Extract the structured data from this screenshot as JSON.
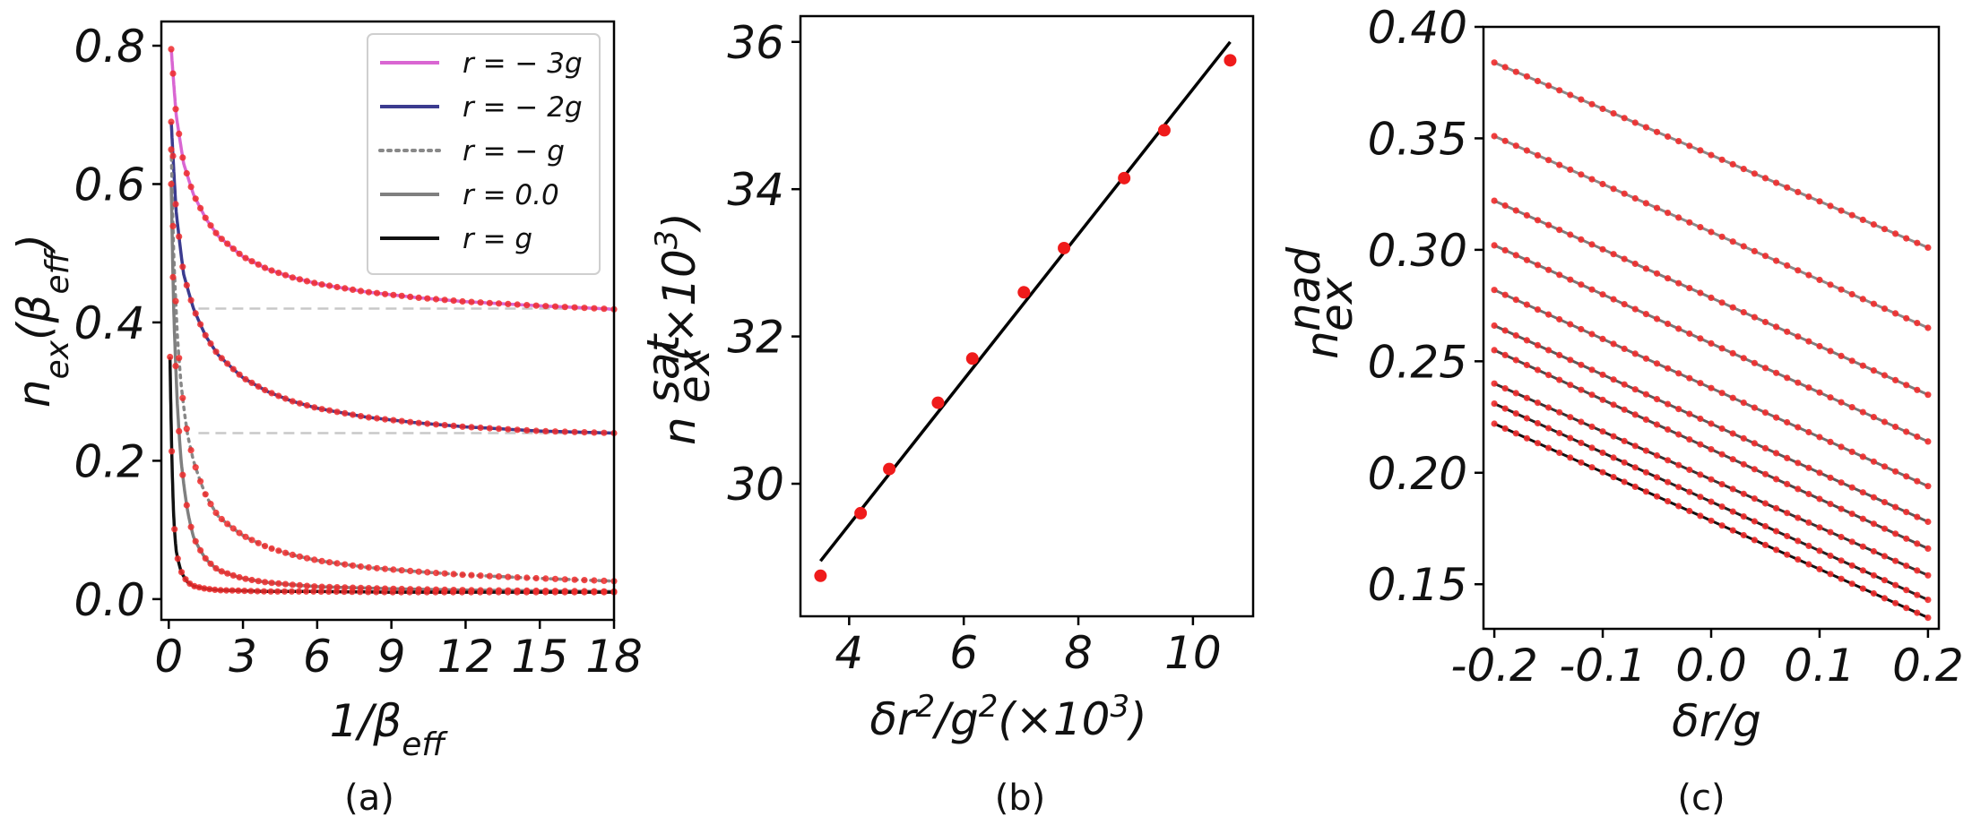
{
  "chart_data": [
    {
      "panel": "a",
      "caption": "(a)",
      "type": "line",
      "xlabel": "1/β",
      "xlabel_sub": "eff",
      "ylabel": "n",
      "ylabel_sub": "ex",
      "ylabel_paren": "(β",
      "ylabel_paren_sub": "eff",
      "ylabel_close": ")",
      "xlim": [
        -0.3,
        18
      ],
      "ylim": [
        -0.03,
        0.835
      ],
      "xticks": [
        0,
        3,
        6,
        9,
        12,
        15,
        18
      ],
      "xtick_labels": [
        "0",
        "3",
        "6",
        "9",
        "12",
        "15",
        "18"
      ],
      "yticks": [
        0.0,
        0.2,
        0.4,
        0.6,
        0.8
      ],
      "ytick_labels": [
        "0.0",
        "0.2",
        "0.4",
        "0.6",
        "0.8"
      ],
      "legend_position": "top-right",
      "legend": [
        "r = − 3g",
        "r = − 2g",
        "r = − g",
        "r = 0.0",
        "r = g"
      ],
      "marker_color": "#ef2b2b",
      "series": [
        {
          "name": "r = − 3g",
          "color": "#d966d2",
          "style": "solid",
          "x": [
            0.1,
            0.3,
            0.6,
            1.0,
            1.5,
            2,
            3,
            4,
            5,
            6,
            8,
            10,
            12,
            15,
            18
          ],
          "y": [
            0.795,
            0.7,
            0.63,
            0.585,
            0.55,
            0.525,
            0.495,
            0.477,
            0.465,
            0.456,
            0.444,
            0.436,
            0.43,
            0.424,
            0.419
          ]
        },
        {
          "name": "r = − 2g",
          "color": "#3b3b8f",
          "style": "solid",
          "x": [
            0.1,
            0.3,
            0.6,
            1.0,
            1.5,
            2,
            3,
            4,
            5,
            6,
            8,
            10,
            12,
            15,
            18
          ],
          "y": [
            0.69,
            0.56,
            0.47,
            0.42,
            0.38,
            0.353,
            0.32,
            0.3,
            0.286,
            0.276,
            0.263,
            0.255,
            0.249,
            0.243,
            0.24
          ]
        },
        {
          "name": "r = − g",
          "color": "#888888",
          "style": "dotted",
          "x": [
            0.1,
            0.2,
            0.35,
            0.5,
            0.75,
            1.0,
            1.5,
            2,
            3,
            4,
            5,
            6,
            8,
            10,
            12,
            15,
            18
          ],
          "y": [
            0.65,
            0.5,
            0.38,
            0.31,
            0.24,
            0.2,
            0.15,
            0.12,
            0.092,
            0.075,
            0.064,
            0.056,
            0.046,
            0.04,
            0.035,
            0.03,
            0.026
          ]
        },
        {
          "name": "r = 0.0",
          "color": "#7f7f7f",
          "style": "solid",
          "x": [
            0.1,
            0.2,
            0.35,
            0.5,
            0.75,
            1.0,
            1.5,
            2,
            3,
            4,
            6,
            9,
            12,
            15,
            18
          ],
          "y": [
            0.6,
            0.42,
            0.28,
            0.2,
            0.13,
            0.09,
            0.058,
            0.042,
            0.03,
            0.024,
            0.018,
            0.015,
            0.013,
            0.012,
            0.011
          ]
        },
        {
          "name": "r = g",
          "color": "#111111",
          "style": "solid",
          "x": [
            0.05,
            0.1,
            0.2,
            0.3,
            0.5,
            0.75,
            1.0,
            1.5,
            2,
            3,
            4,
            6,
            9,
            12,
            15,
            18
          ],
          "y": [
            0.35,
            0.25,
            0.12,
            0.07,
            0.04,
            0.025,
            0.019,
            0.015,
            0.013,
            0.012,
            0.011,
            0.011,
            0.01,
            0.01,
            0.01,
            0.01
          ]
        }
      ],
      "reference_lines": [
        0.42,
        0.24
      ]
    },
    {
      "panel": "b",
      "caption": "(b)",
      "type": "scatter",
      "xlabel": "δr",
      "xlabel_sup": "2",
      "xlabel_mid": "/g",
      "xlabel_sup2": "2",
      "xlabel_tail": "(×10",
      "xlabel_sup3": "3",
      "xlabel_end": ")",
      "ylabel": "n",
      "ylabel_sup": "sat",
      "ylabel_sub": "ex",
      "ylabel_tail": "(×10",
      "ylabel_sup2": "3",
      "ylabel_end": ")",
      "xlim": [
        3.15,
        11.05
      ],
      "ylim": [
        28.2,
        36.35
      ],
      "xticks": [
        4,
        6,
        8,
        10
      ],
      "xtick_labels": [
        "4",
        "6",
        "8",
        "10"
      ],
      "yticks": [
        30,
        32,
        34,
        36
      ],
      "ytick_labels": [
        "30",
        "32",
        "34",
        "36"
      ],
      "points": {
        "color": "#ef1b1b",
        "x": [
          3.5,
          4.2,
          4.7,
          5.55,
          6.15,
          7.05,
          7.75,
          8.8,
          9.5,
          10.65
        ],
        "y": [
          28.75,
          29.6,
          30.2,
          31.1,
          31.7,
          32.6,
          33.2,
          34.15,
          34.8,
          35.75
        ]
      },
      "fit_line": {
        "color": "#000000",
        "x": [
          3.5,
          10.65
        ],
        "y": [
          28.95,
          36.0
        ]
      }
    },
    {
      "panel": "c",
      "caption": "(c)",
      "type": "line",
      "xlabel": "δr/g",
      "ylabel": "n",
      "ylabel_sup": "nad",
      "ylabel_sub": "ex",
      "xlim": [
        -0.21,
        0.21
      ],
      "ylim": [
        0.13,
        0.4
      ],
      "xticks": [
        -0.2,
        -0.1,
        0.0,
        0.1,
        0.2
      ],
      "xtick_labels": [
        "-0.2",
        "-0.1",
        "0.0",
        "0.1",
        "0.2"
      ],
      "yticks": [
        0.15,
        0.2,
        0.25,
        0.3,
        0.35,
        0.4
      ],
      "ytick_labels": [
        "0.15",
        "0.20",
        "0.25",
        "0.30",
        "0.35",
        "0.40"
      ],
      "marker_color": "#ef2b2b",
      "lines": [
        {
          "color": "#8a8a8a",
          "y_start": 0.384,
          "y_end": 0.301
        },
        {
          "color": "#8a8a8a",
          "y_start": 0.351,
          "y_end": 0.265
        },
        {
          "color": "#7d7d7d",
          "y_start": 0.322,
          "y_end": 0.235
        },
        {
          "color": "#777777",
          "y_start": 0.302,
          "y_end": 0.214
        },
        {
          "color": "#6e6e6e",
          "y_start": 0.282,
          "y_end": 0.194
        },
        {
          "color": "#5a5a5a",
          "y_start": 0.266,
          "y_end": 0.178
        },
        {
          "color": "#4a4a4a",
          "y_start": 0.255,
          "y_end": 0.166
        },
        {
          "color": "#333333",
          "y_start": 0.24,
          "y_end": 0.154
        },
        {
          "color": "#222222",
          "y_start": 0.231,
          "y_end": 0.143
        },
        {
          "color": "#111111",
          "y_start": 0.222,
          "y_end": 0.135
        }
      ]
    }
  ]
}
